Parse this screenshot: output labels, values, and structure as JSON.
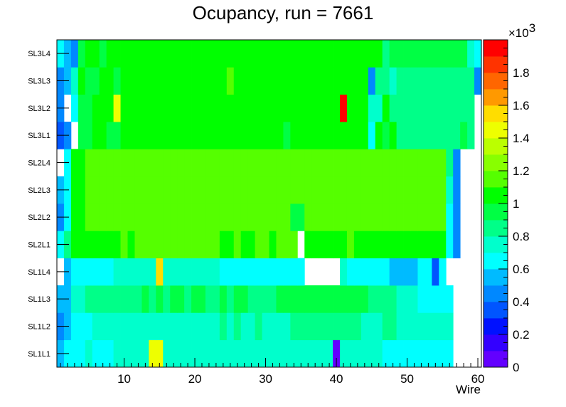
{
  "chart_data": {
    "type": "heatmap",
    "title": "Ocupancy, run = 7661",
    "xlabel": "Wire",
    "ylabel": "",
    "xlim": [
      0.5,
      60.5
    ],
    "x_ticks": [
      10,
      20,
      30,
      40,
      50,
      60
    ],
    "rows": [
      "SL1L1",
      "SL1L2",
      "SL1L3",
      "SL1L4",
      "SL2L1",
      "SL2L2",
      "SL2L3",
      "SL2L4",
      "SL3L1",
      "SL3L2",
      "SL3L3",
      "SL3L4"
    ],
    "colorbar": {
      "min": 0,
      "max": 2000,
      "exponent_label": "×10",
      "exponent_power": "3",
      "tick_values": [
        0,
        200,
        400,
        600,
        800,
        1000,
        1200,
        1400,
        1600,
        1800
      ],
      "tick_labels": [
        "0",
        "0.2",
        "0.4",
        "0.6",
        "0.8",
        "1",
        "1.2",
        "1.4",
        "1.6",
        "1.8"
      ],
      "palette": [
        "#6300ff",
        "#3300ff",
        "#0011ff",
        "#0055ff",
        "#0088ff",
        "#00bbff",
        "#00ffff",
        "#00ffcc",
        "#00ff88",
        "#00ff44",
        "#00ff00",
        "#55ff00",
        "#88ff00",
        "#bbff00",
        "#eeff00",
        "#ffdd00",
        "#ff9900",
        "#ff6600",
        "#ff3300",
        "#ff0000"
      ]
    },
    "matrix": [
      [
        500,
        650,
        680,
        680,
        700,
        680,
        650,
        680,
        740,
        760,
        720,
        760,
        780,
        1430,
        1430,
        760,
        740,
        760,
        740,
        720,
        760,
        780,
        760,
        760,
        740,
        760,
        740,
        720,
        760,
        780,
        760,
        740,
        720,
        700,
        740,
        760,
        780,
        760,
        740,
        80,
        740,
        760,
        780,
        760,
        720,
        740,
        660,
        660,
        660,
        660,
        660,
        660,
        660,
        660,
        600,
        600,
        null,
        null,
        null,
        null
      ],
      [
        470,
        520,
        600,
        620,
        680,
        700,
        720,
        700,
        740,
        760,
        740,
        760,
        780,
        740,
        760,
        780,
        740,
        760,
        780,
        760,
        760,
        780,
        780,
        800,
        790,
        800,
        780,
        760,
        800,
        780,
        760,
        740,
        780,
        800,
        850,
        840,
        820,
        860,
        850,
        840,
        830,
        820,
        800,
        780,
        760,
        740,
        800,
        820,
        760,
        740,
        760,
        740,
        780,
        760,
        760,
        720,
        null,
        null,
        null,
        null
      ],
      [
        500,
        560,
        700,
        760,
        800,
        820,
        860,
        860,
        880,
        860,
        880,
        880,
        900,
        880,
        900,
        880,
        900,
        900,
        880,
        900,
        900,
        880,
        860,
        900,
        880,
        900,
        900,
        880,
        860,
        880,
        880,
        900,
        920,
        940,
        940,
        960,
        940,
        920,
        900,
        900,
        940,
        920,
        900,
        900,
        880,
        840,
        820,
        800,
        720,
        700,
        700,
        680,
        660,
        640,
        640,
        600,
        null,
        null,
        null,
        null
      ],
      [
        null,
        520,
        640,
        640,
        640,
        640,
        640,
        640,
        760,
        740,
        780,
        760,
        720,
        780,
        1520,
        760,
        740,
        720,
        740,
        760,
        760,
        740,
        700,
        640,
        640,
        660,
        660,
        660,
        660,
        680,
        680,
        680,
        680,
        680,
        680,
        null,
        null,
        null,
        null,
        null,
        740,
        640,
        640,
        640,
        640,
        640,
        640,
        580,
        580,
        580,
        580,
        600,
        680,
        340,
        620,
        null,
        null,
        null,
        null,
        null
      ],
      [
        620,
        800,
        1020,
        1060,
        1080,
        1060,
        1080,
        1060,
        1080,
        1120,
        1080,
        1120,
        1120,
        1120,
        1120,
        1120,
        1120,
        1120,
        1120,
        1120,
        1120,
        1120,
        1100,
        1080,
        1080,
        1100,
        1080,
        1080,
        1100,
        1100,
        1080,
        1100,
        1100,
        1100,
        null,
        1080,
        1080,
        1080,
        1080,
        1080,
        1080,
        1120,
        1080,
        1060,
        1080,
        1080,
        1080,
        1080,
        1080,
        1080,
        1080,
        1080,
        1080,
        1060,
        1060,
        640,
        400,
        null,
        null,
        null
      ],
      [
        420,
        620,
        1020,
        1060,
        1100,
        1120,
        1120,
        1120,
        1100,
        1120,
        1140,
        1100,
        1100,
        1120,
        1120,
        1100,
        1120,
        1120,
        1120,
        1140,
        1140,
        1140,
        1100,
        1140,
        1140,
        1160,
        1140,
        1120,
        1120,
        1100,
        1140,
        1140,
        1100,
        940,
        940,
        1120,
        1120,
        1100,
        1120,
        1120,
        1120,
        1120,
        1120,
        1120,
        1120,
        1120,
        1140,
        1100,
        1120,
        1120,
        1140,
        1140,
        1140,
        1120,
        1120,
        680,
        440,
        null,
        null,
        null
      ],
      [
        500,
        680,
        1060,
        1080,
        1120,
        1140,
        1140,
        1120,
        1140,
        1160,
        1140,
        1140,
        1140,
        1120,
        1180,
        1140,
        1120,
        1180,
        1160,
        1180,
        1160,
        1140,
        1140,
        1140,
        1120,
        1160,
        1160,
        1160,
        1120,
        1140,
        1140,
        1180,
        1120,
        1160,
        1140,
        1160,
        1140,
        1140,
        1140,
        1140,
        1140,
        1120,
        1160,
        1160,
        1140,
        1140,
        1140,
        1120,
        1140,
        1140,
        1140,
        1140,
        1140,
        1140,
        1140,
        740,
        400,
        null,
        null,
        null
      ],
      [
        null,
        620,
        1040,
        1080,
        1120,
        1140,
        1120,
        1140,
        1140,
        1160,
        1140,
        1140,
        1140,
        1140,
        1140,
        1160,
        1160,
        1140,
        1180,
        1160,
        1140,
        1180,
        1180,
        1160,
        1140,
        1140,
        1180,
        1180,
        1140,
        1160,
        1140,
        1160,
        1160,
        1140,
        1140,
        1120,
        1140,
        1160,
        1140,
        1140,
        1140,
        1160,
        1140,
        1140,
        1140,
        1160,
        1160,
        1140,
        1140,
        1140,
        1140,
        1140,
        1140,
        1140,
        1140,
        840,
        400,
        null,
        null,
        null
      ],
      [
        360,
        480,
        null,
        900,
        960,
        1000,
        1000,
        980,
        980,
        1000,
        1000,
        1020,
        1000,
        1020,
        1000,
        1000,
        1000,
        1020,
        1000,
        1020,
        1000,
        1020,
        1020,
        1000,
        1000,
        1020,
        1020,
        1000,
        1000,
        1020,
        1020,
        1000,
        980,
        1000,
        1000,
        1020,
        1020,
        1000,
        1000,
        1000,
        1000,
        1000,
        1000,
        1000,
        600,
        1000,
        980,
        1000,
        860,
        860,
        860,
        860,
        860,
        860,
        860,
        860,
        880,
        900,
        860,
        null
      ],
      [
        400,
        null,
        620,
        960,
        980,
        1000,
        1000,
        1000,
        1480,
        1020,
        1020,
        1000,
        1020,
        1000,
        1040,
        1040,
        1000,
        1000,
        1020,
        1000,
        1040,
        1040,
        1020,
        1040,
        1020,
        1040,
        1040,
        1020,
        1020,
        1020,
        1000,
        1020,
        1000,
        1020,
        1040,
        1020,
        1040,
        1000,
        1040,
        1020,
        1900,
        1000,
        1000,
        1000,
        720,
        720,
        1000,
        800,
        860,
        860,
        860,
        860,
        860,
        860,
        860,
        860,
        860,
        860,
        860,
        null
      ],
      [
        420,
        520,
        720,
        1000,
        960,
        980,
        1000,
        1000,
        980,
        1000,
        1000,
        1020,
        1020,
        1040,
        1020,
        1020,
        1040,
        1020,
        1040,
        1020,
        1040,
        1040,
        1040,
        1040,
        1100,
        1040,
        1060,
        1020,
        1040,
        1060,
        1080,
        1020,
        1060,
        1040,
        1040,
        1020,
        1040,
        1040,
        1000,
        1060,
        1060,
        1040,
        1040,
        1000,
        420,
        860,
        880,
        760,
        880,
        880,
        880,
        880,
        880,
        880,
        880,
        880,
        880,
        880,
        880,
        420
      ],
      [
        620,
        500,
        420,
        960,
        1000,
        1000,
        980,
        1000,
        1000,
        1000,
        1020,
        1000,
        1000,
        1020,
        1020,
        1000,
        1020,
        1000,
        1020,
        1000,
        1000,
        1020,
        1000,
        1000,
        1020,
        1020,
        1000,
        1020,
        1000,
        1020,
        1000,
        1020,
        1000,
        1020,
        1020,
        1000,
        1020,
        1000,
        1000,
        1020,
        1000,
        1020,
        1020,
        1000,
        1000,
        1000,
        820,
        940,
        920,
        920,
        920,
        920,
        920,
        920,
        920,
        920,
        920,
        920,
        700,
        620
      ]
    ]
  }
}
